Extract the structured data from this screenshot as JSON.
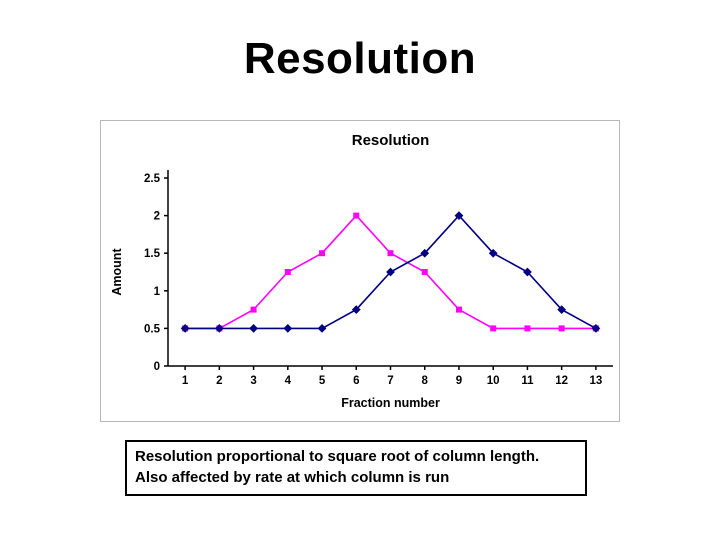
{
  "slide": {
    "title": "Resolution"
  },
  "caption": {
    "line1": "Resolution proportional to square root of column length.",
    "line2": "Also affected by rate at which column is run"
  },
  "chart_data": {
    "type": "line",
    "title": "Resolution",
    "xlabel": "Fraction number",
    "ylabel": "Amount",
    "x": [
      "1",
      "2",
      "3",
      "4",
      "5",
      "6",
      "7",
      "8",
      "9",
      "10",
      "11",
      "12",
      "13"
    ],
    "ylim": [
      0,
      2.5
    ],
    "yticks": [
      0,
      0.5,
      1,
      1.5,
      2,
      2.5
    ],
    "grid": false,
    "legend": "none",
    "series": [
      {
        "name": "magenta-series",
        "color": "#FF00FF",
        "marker": "square",
        "values": [
          0.5,
          0.5,
          0.75,
          1.25,
          1.5,
          2,
          1.5,
          1.25,
          0.75,
          0.5,
          0.5,
          0.5,
          0.5
        ]
      },
      {
        "name": "navy-series",
        "color": "#000080",
        "marker": "diamond",
        "values": [
          0.5,
          0.5,
          0.5,
          0.5,
          0.5,
          0.75,
          1.25,
          1.5,
          2,
          1.5,
          1.25,
          0.75,
          0.5
        ]
      }
    ]
  }
}
